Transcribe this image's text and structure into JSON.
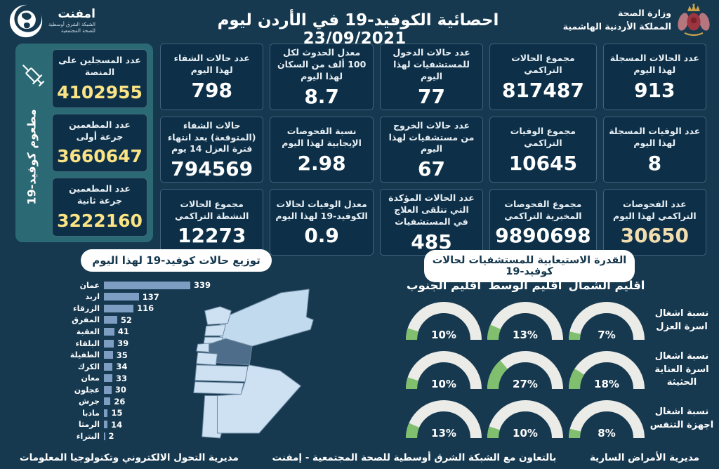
{
  "header": {
    "title": "احصائية الكوفيد-19 في الأردن ليوم",
    "date": "23/09/2021",
    "ministry_line1": "وزارة الصحة",
    "ministry_line2": "المملكة الأردنية الهاشمية",
    "emphnet_name": "امفنت",
    "emphnet_line1": "الشبكة الشرق أوسطية",
    "emphnet_line2": "للصحة المجتمعية"
  },
  "vaccination": {
    "side_label": "مطعوم كوفيد-19",
    "cards": [
      {
        "label": "عدد المسجلين على المنصة",
        "value": "4102955"
      },
      {
        "label": "عدد المطعمين جرعة أولى",
        "value": "3660647"
      },
      {
        "label": "عدد المطعمين جرعة ثانية",
        "value": "3222160"
      }
    ]
  },
  "stats": {
    "cards": [
      {
        "label": "عدد الحالات المسجلة لهذا اليوم",
        "value": "913"
      },
      {
        "label": "مجموع الحالات التراكمي",
        "value": "817487"
      },
      {
        "label": "عدد حالات الدخول للمستشفيات لهذا اليوم",
        "value": "77"
      },
      {
        "label": "معدل الحدوث لكل 100 ألف من السكان لهذا اليوم",
        "value": "8.7"
      },
      {
        "label": "عدد حالات الشفاء لهذا اليوم",
        "value": "798"
      },
      {
        "label": "عدد الوفيات المسجلة لهذا اليوم",
        "value": "8"
      },
      {
        "label": "مجموع الوفيات التراكمي",
        "value": "10645"
      },
      {
        "label": "عدد حالات الخروج من مستشفيات لهذا اليوم",
        "value": "67"
      },
      {
        "label": "نسبة الفحوصات الإيجابية لهذا اليوم",
        "value": "2.98"
      },
      {
        "label": "حالات الشفاء (المتوقعة) بعد انتهاء فترة العزل 14 يوم",
        "value": "794569"
      },
      {
        "label": "عدد الفحوصات التراكمي لهذا اليوم",
        "value": "30650"
      },
      {
        "label": "مجموع الفحوصات المخبرية التراكمي",
        "value": "9890698"
      },
      {
        "label": "عدد الحالات المؤكدة التي تتلقى العلاج في المستشفيات",
        "value": "485"
      },
      {
        "label": "معدل الوفيات لحالات الكوفيد-19 لهذا اليوم",
        "value": "0.9"
      },
      {
        "label": "مجموع الحالات النشطة التراكمي",
        "value": "12273"
      }
    ]
  },
  "chart_data": [
    {
      "type": "bar",
      "orientation": "horizontal",
      "title": "توزيع حالات كوفيد-19 لهذا اليوم",
      "categories": [
        "عمان",
        "اربد",
        "الزرقاء",
        "المفرق",
        "العقبة",
        "البلقاء",
        "الطفيلة",
        "الكرك",
        "معان",
        "عجلون",
        "جرش",
        "مادبا",
        "الرمثا",
        "البتراء"
      ],
      "values": [
        339,
        137,
        116,
        52,
        41,
        39,
        35,
        34,
        33,
        30,
        26,
        15,
        14,
        2
      ],
      "xlim": [
        0,
        339
      ],
      "legend": "none",
      "grid": false
    },
    {
      "type": "table",
      "title": "القدرة الاستيعابية للمستشفيات لحالات كوفيد-19",
      "subtitle": "gauge grid, values are occupancy percentages",
      "columns": [
        "اقليم الشمال",
        "اقليم الوسط",
        "اقليم الجنوب"
      ],
      "rows": [
        {
          "label": "نسبة اشغال اسرة العزل",
          "values": [
            "7%",
            "13%",
            "10%"
          ]
        },
        {
          "label": "نسبة اشغال اسرة العناية الحثيثة",
          "values": [
            "18%",
            "27%",
            "10%"
          ]
        },
        {
          "label": "نسبة اشغال اجهزة التنفس",
          "values": [
            "8%",
            "10%",
            "13%"
          ]
        }
      ]
    }
  ],
  "footer": {
    "right": "مديرية الأمراض السارية",
    "center": "بالتعاون مع الشبكة الشرق أوسطية للصحة المجتمعية - إمفنت",
    "left": "مديرية التحول الالكتروني وتكنولوجيا المعلومات"
  },
  "colors": {
    "background": "#163950",
    "card_bg": "#0d3048",
    "card_border": "#41627a",
    "sidebar_bg": "#2b6a75",
    "accent_yellow": "#fce485",
    "tests_accent": "#f2ddae",
    "bar_color": "#7e9dc2",
    "gauge_green": "#7fbf6d",
    "gauge_track": "#ebebe7",
    "map_fill": "#cde1f2",
    "map_fill_alt": "#c2daee",
    "map_highlight": "#4d6d8b",
    "pill_bg": "#ffffff",
    "pill_text": "#14364c"
  }
}
